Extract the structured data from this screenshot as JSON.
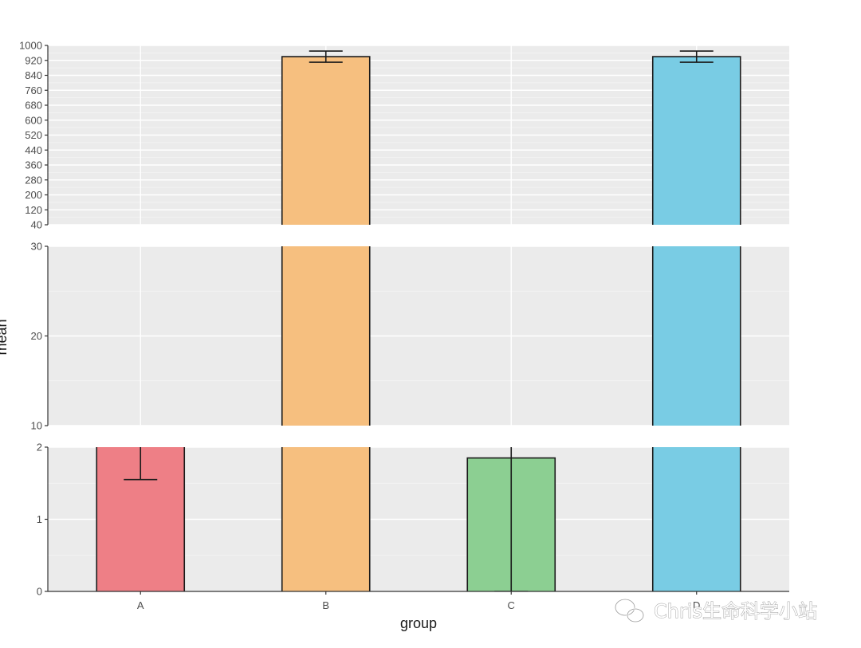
{
  "chart_data": {
    "type": "bar",
    "title": "",
    "xlabel": "group",
    "ylabel": "mean",
    "categories": [
      "A",
      "B",
      "C",
      "D"
    ],
    "colors": [
      "#ee7f86",
      "#f6bf7f",
      "#8ccf92",
      "#79cce4"
    ],
    "values": [
      2.5,
      940,
      1.85,
      940
    ],
    "error_low": [
      1.55,
      910,
      0,
      910
    ],
    "error_high": [
      3.0,
      970,
      3.0,
      970
    ],
    "panels": [
      {
        "ylim": [
          0,
          2
        ],
        "ticks": [
          "0",
          "1",
          "2"
        ],
        "tick_values": [
          0,
          1,
          2
        ]
      },
      {
        "ylim": [
          10,
          30
        ],
        "ticks": [
          "10",
          "20",
          "30"
        ],
        "tick_values": [
          10,
          20,
          30
        ]
      },
      {
        "ylim": [
          40,
          1000
        ],
        "ticks": [
          "40",
          "120",
          "200",
          "280",
          "360",
          "440",
          "520",
          "600",
          "680",
          "760",
          "840",
          "920",
          "1000"
        ],
        "tick_values": [
          40,
          120,
          200,
          280,
          360,
          440,
          520,
          600,
          680,
          760,
          840,
          920,
          1000
        ]
      }
    ],
    "grid": true,
    "legend": "none",
    "watermark": "Chris生命科学小站"
  }
}
